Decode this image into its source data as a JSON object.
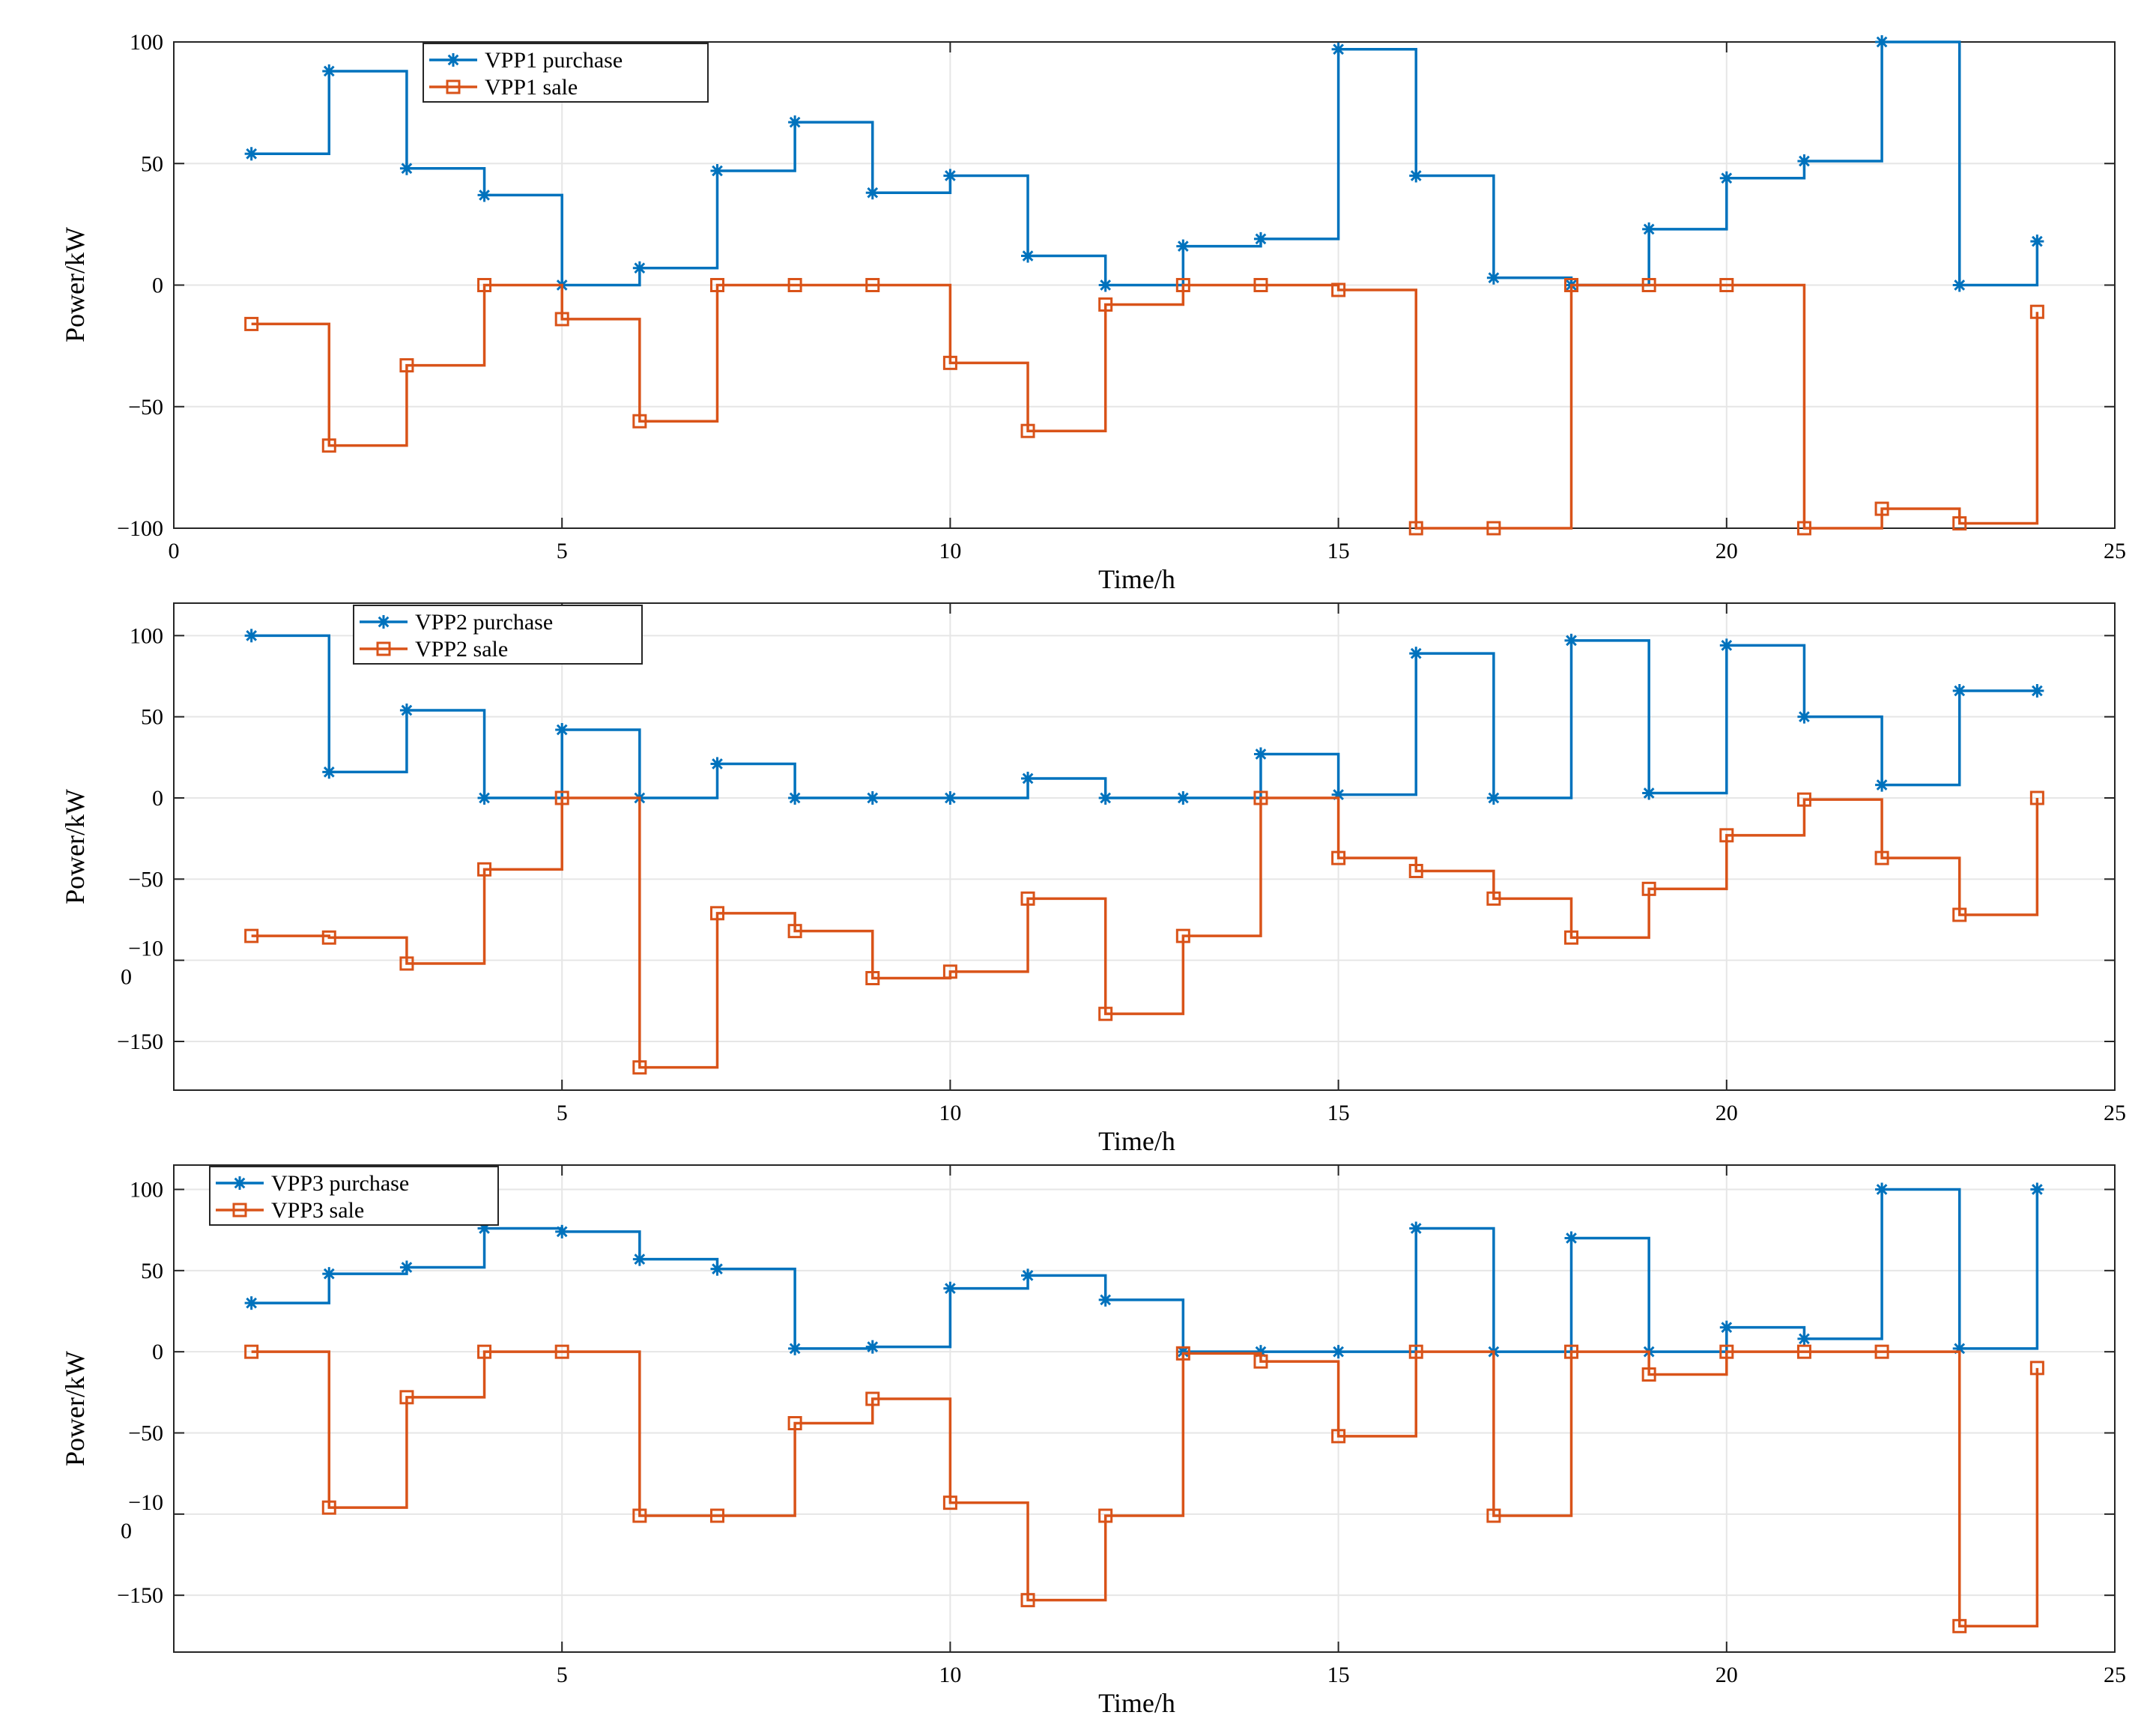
{
  "colors": {
    "purchase": "#0072BD",
    "sale": "#D95319",
    "grid": "#e6e6e6",
    "axis": "#262626"
  },
  "chart_data": [
    {
      "type": "line",
      "step": true,
      "xlabel": "Time/h",
      "ylabel": "Power/kW",
      "xlim": [
        0,
        25
      ],
      "ylim": [
        -100,
        100
      ],
      "xticks": [
        "0",
        "5",
        "10",
        "15",
        "20",
        "25"
      ],
      "yticks": [
        "100",
        "50",
        "0",
        "−50",
        "−100"
      ],
      "legend": "top-left",
      "series": [
        {
          "name": "VPP1 purchase",
          "marker": "star",
          "x": [
            1,
            2,
            3,
            4,
            5,
            6,
            7,
            8,
            9,
            10,
            11,
            12,
            13,
            14,
            15,
            16,
            17,
            18,
            19,
            20,
            21,
            22,
            23,
            24
          ],
          "values": [
            54,
            88,
            48,
            37,
            0,
            7,
            47,
            67,
            38,
            45,
            12,
            0,
            16,
            19,
            97,
            45,
            3,
            0,
            23,
            44,
            51,
            100,
            0,
            18
          ]
        },
        {
          "name": "VPP1 sale",
          "marker": "square",
          "x": [
            1,
            2,
            3,
            4,
            5,
            6,
            7,
            8,
            9,
            10,
            11,
            12,
            13,
            14,
            15,
            16,
            17,
            18,
            19,
            20,
            21,
            22,
            23,
            24
          ],
          "values": [
            -16,
            -66,
            -33,
            0,
            -14,
            -56,
            0,
            0,
            0,
            -32,
            -60,
            -8,
            0,
            0,
            -2,
            -100,
            -100,
            0,
            0,
            0,
            -100,
            -92,
            -98,
            -11
          ]
        }
      ]
    },
    {
      "type": "line",
      "step": true,
      "xlabel": "Time/h",
      "ylabel": "Power/kW",
      "xlim": [
        0,
        25
      ],
      "ylim": [
        -180,
        120
      ],
      "xticks": [
        "5",
        "10",
        "15",
        "20",
        "25"
      ],
      "yticks": [
        "100",
        "50",
        "0",
        "−50",
        "−10\n0",
        "−150"
      ],
      "legend": "top-left",
      "series": [
        {
          "name": "VPP2 purchase",
          "marker": "star",
          "x": [
            1,
            2,
            3,
            4,
            5,
            6,
            7,
            8,
            9,
            10,
            11,
            12,
            13,
            14,
            15,
            16,
            17,
            18,
            19,
            20,
            21,
            22,
            23,
            24
          ],
          "values": [
            100,
            16,
            54,
            0,
            42,
            0,
            21,
            0,
            0,
            0,
            12,
            0,
            0,
            27,
            2,
            89,
            0,
            97,
            3,
            94,
            50,
            8,
            66,
            66
          ]
        },
        {
          "name": "VPP2 sale",
          "marker": "square",
          "x": [
            1,
            2,
            3,
            4,
            5,
            6,
            7,
            8,
            9,
            10,
            11,
            12,
            13,
            14,
            15,
            16,
            17,
            18,
            19,
            20,
            21,
            22,
            23,
            24
          ],
          "values": [
            -85,
            -86,
            -102,
            -44,
            0,
            -166,
            -71,
            -82,
            -111,
            -107,
            -62,
            -133,
            -85,
            0,
            -37,
            -45,
            -62,
            -86,
            -56,
            -23,
            -1,
            -37,
            -72,
            0
          ]
        }
      ]
    },
    {
      "type": "line",
      "step": true,
      "xlabel": "Time/h",
      "ylabel": "Power/kW",
      "xlim": [
        0,
        25
      ],
      "ylim": [
        -185,
        115
      ],
      "xticks": [
        "5",
        "10",
        "15",
        "20",
        "25"
      ],
      "yticks": [
        "100",
        "50",
        "0",
        "−50",
        "−10\n0",
        "−150"
      ],
      "legend": "top-left",
      "series": [
        {
          "name": "VPP3 purchase",
          "marker": "star",
          "x": [
            1,
            2,
            3,
            4,
            5,
            6,
            7,
            8,
            9,
            10,
            11,
            12,
            13,
            14,
            15,
            16,
            17,
            18,
            19,
            20,
            21,
            22,
            23,
            24
          ],
          "values": [
            30,
            48,
            52,
            76,
            74,
            57,
            51,
            2,
            3,
            39,
            47,
            32,
            0,
            0,
            0,
            76,
            0,
            70,
            0,
            15,
            8,
            100,
            2,
            100
          ]
        },
        {
          "name": "VPP3 sale",
          "marker": "square",
          "x": [
            1,
            2,
            3,
            4,
            5,
            6,
            7,
            8,
            9,
            10,
            11,
            12,
            13,
            14,
            15,
            16,
            17,
            18,
            19,
            20,
            21,
            22,
            23,
            24
          ],
          "values": [
            0,
            -96,
            -28,
            0,
            0,
            -101,
            -101,
            -44,
            -29,
            -93,
            -153,
            -101,
            -1,
            -6,
            -52,
            0,
            -101,
            0,
            -14,
            0,
            0,
            0,
            -169,
            -10
          ]
        }
      ]
    }
  ]
}
